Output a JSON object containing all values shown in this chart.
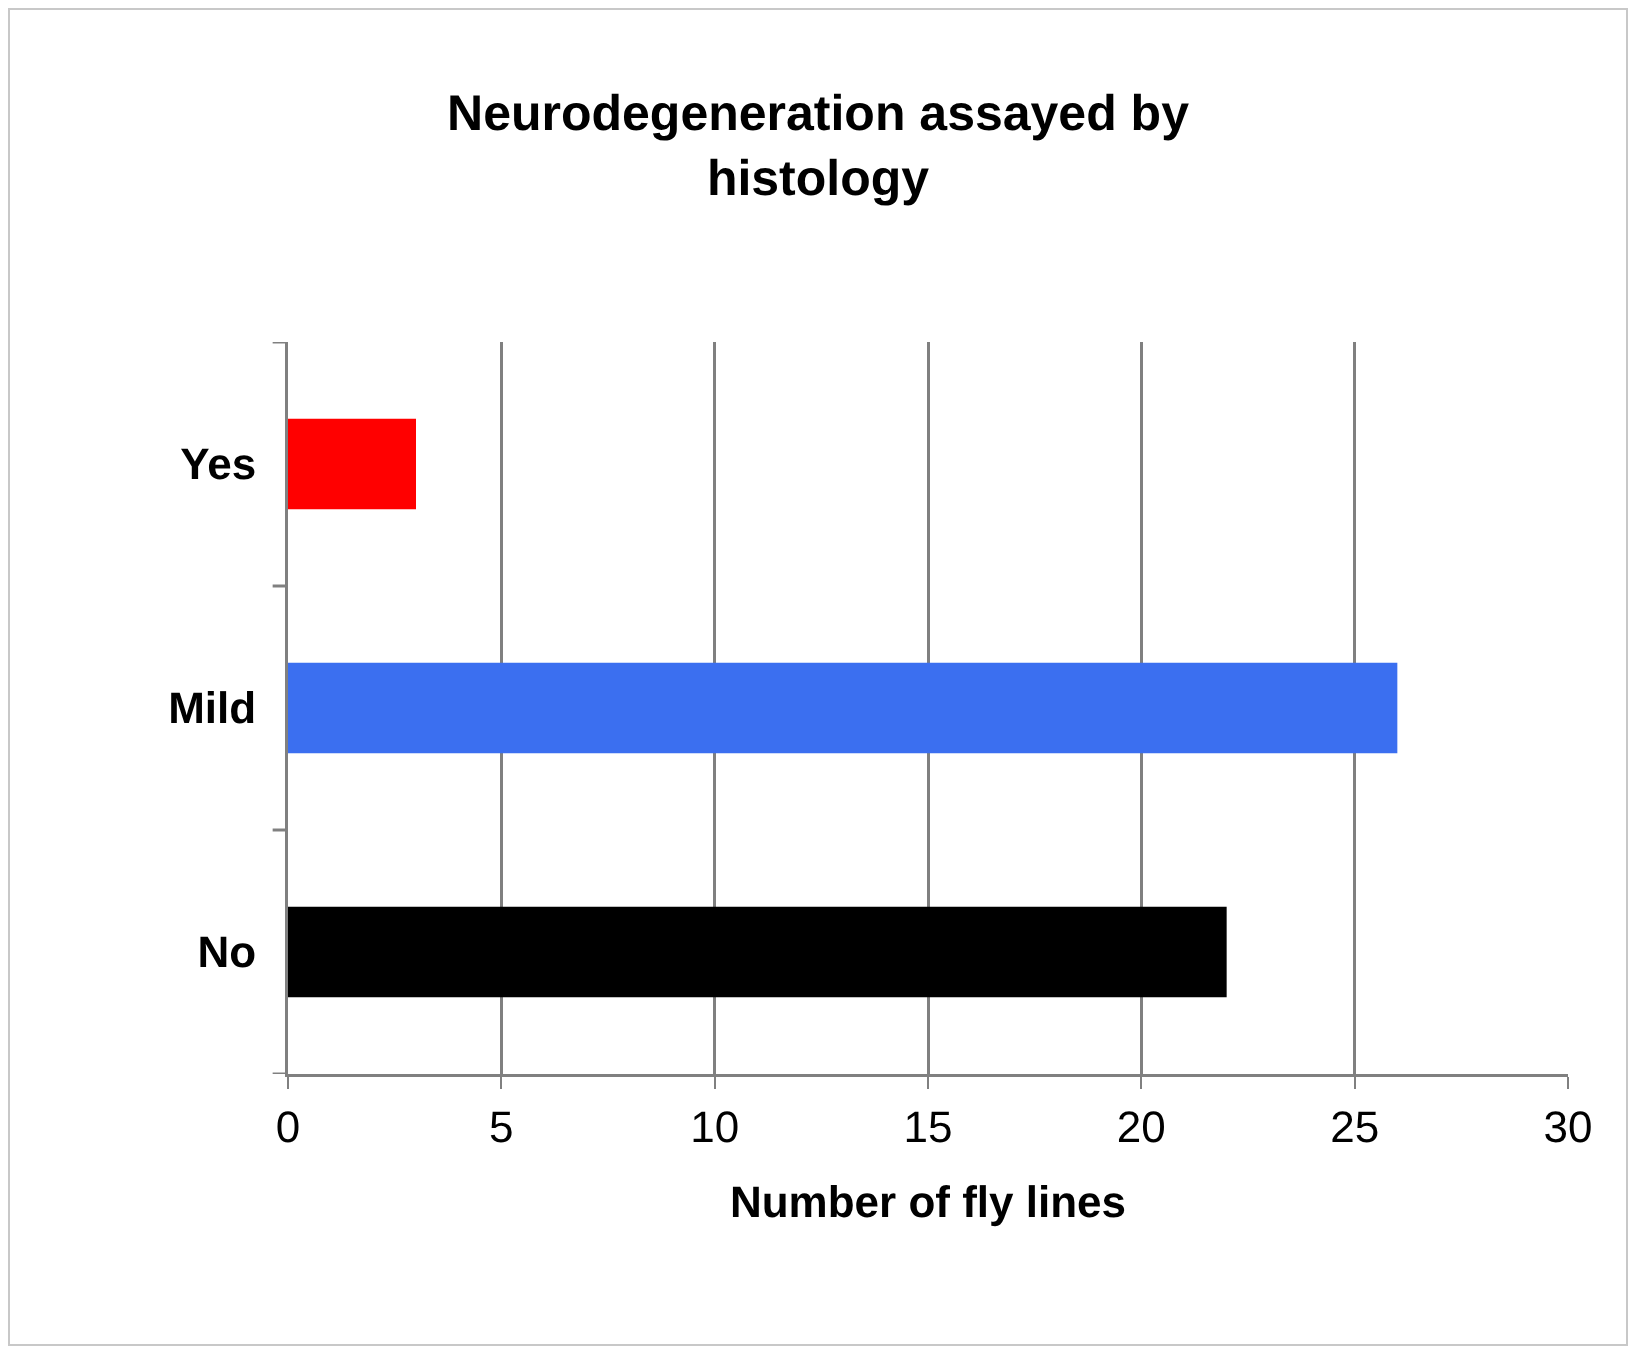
{
  "chart_data": {
    "type": "bar",
    "orientation": "horizontal",
    "title": "Neurodegeneration assayed by histology",
    "xlabel": "Number of fly lines",
    "categories": [
      "Yes",
      "Mild",
      "No"
    ],
    "values": [
      3,
      26,
      22
    ],
    "colors": [
      "#ff0000",
      "#3b6ff0",
      "#000000"
    ],
    "xlim": [
      0,
      30
    ],
    "xticks": [
      0,
      5,
      10,
      15,
      20,
      25,
      30
    ],
    "grid": "x"
  }
}
